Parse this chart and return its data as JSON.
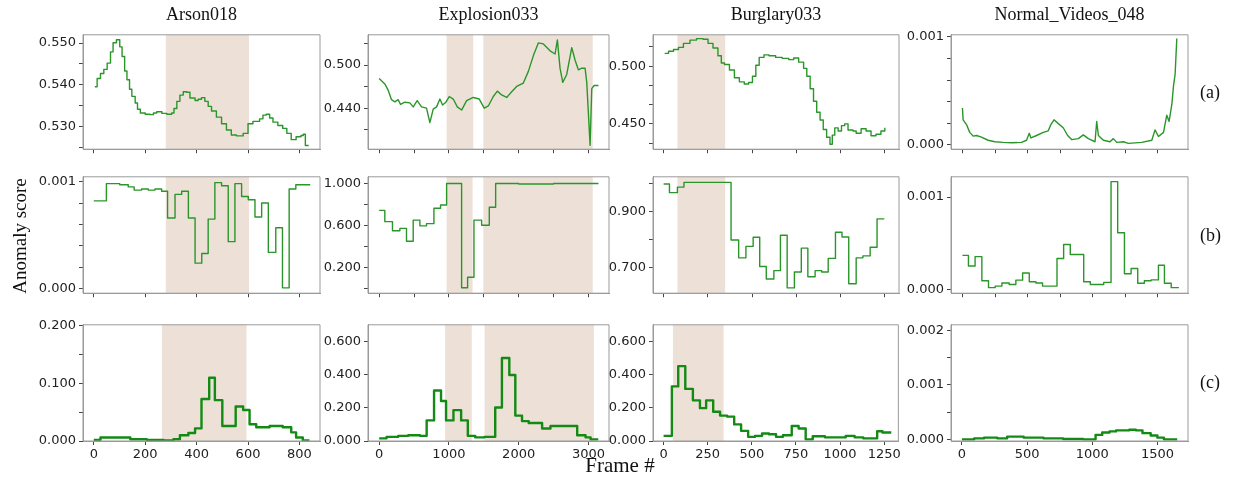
{
  "chart_data": [
    {
      "type": "step",
      "title": "Arson018",
      "x": [
        4,
        13,
        26,
        39,
        52,
        65,
        75,
        88,
        101,
        110,
        120,
        129,
        139,
        148,
        161,
        170,
        181,
        200,
        219,
        232,
        245,
        265,
        284,
        303,
        312,
        323,
        335,
        348,
        361,
        374,
        394,
        406,
        419,
        432,
        445,
        458,
        477,
        497,
        516,
        535,
        555,
        581,
        600,
        619,
        645,
        658,
        671,
        684,
        697,
        716,
        735,
        751,
        768,
        787,
        806,
        815,
        823,
        836
      ],
      "series": [
        {
          "color": "#2a962a",
          "values": [
            0.5395,
            0.5415,
            0.5427,
            0.5437,
            0.5452,
            0.5479,
            0.5501,
            0.5508,
            0.5491,
            0.5468,
            0.5433,
            0.5412,
            0.5389,
            0.5372,
            0.5356,
            0.5341,
            0.5332,
            0.5329,
            0.5328,
            0.5332,
            0.5335,
            0.5331,
            0.5329,
            0.5332,
            0.5343,
            0.536,
            0.5375,
            0.5383,
            0.5382,
            0.5368,
            0.5362,
            0.5365,
            0.5369,
            0.536,
            0.5348,
            0.5337,
            0.5322,
            0.5306,
            0.5291,
            0.5279,
            0.5277,
            0.5283,
            0.5306,
            0.5312,
            0.5318,
            0.5327,
            0.5329,
            0.532,
            0.531,
            0.5302,
            0.5295,
            0.5283,
            0.5268,
            0.5275,
            0.5278,
            0.5281,
            0.5254,
            0.5254
          ]
        }
      ],
      "xlim": [
        -42,
        880
      ],
      "xticks": [
        0,
        200,
        400,
        600,
        800
      ],
      "ylim": [
        0.5245,
        0.552
      ],
      "yticks": [
        {
          "value": 0.525,
          "label": null
        },
        {
          "value": 0.53,
          "label": "0.530"
        },
        {
          "value": 0.535,
          "label": null
        },
        {
          "value": 0.54,
          "label": "0.540"
        },
        {
          "value": 0.545,
          "label": null
        },
        {
          "value": 0.55,
          "label": "0.550"
        }
      ],
      "bands": [
        {
          "axis": "x",
          "from": 280,
          "to": 604,
          "color": "#ede1d7"
        }
      ],
      "tick_labels": "y"
    },
    {
      "type": "line",
      "title": "Explosion033",
      "x": [
        0,
        81,
        129,
        177,
        225,
        273,
        306,
        368,
        440,
        488,
        545,
        608,
        679,
        727,
        775,
        823,
        871,
        909,
        957,
        1005,
        1062,
        1120,
        1182,
        1254,
        1349,
        1435,
        1507,
        1565,
        1636,
        1694,
        1756,
        1828,
        1900,
        1971,
        2067,
        2139,
        2211,
        2282,
        2354,
        2450,
        2522,
        2555,
        2593,
        2632,
        2689,
        2761,
        2809,
        2856,
        2904,
        2952,
        2976,
        3024,
        3048,
        3081,
        3144
      ],
      "series": [
        {
          "color": "#2a962a",
          "values": [
            0.4812,
            0.4737,
            0.465,
            0.4518,
            0.4488,
            0.4518,
            0.4453,
            0.4483,
            0.4474,
            0.4418,
            0.4505,
            0.4418,
            0.44,
            0.4199,
            0.4387,
            0.4418,
            0.4527,
            0.4444,
            0.4483,
            0.4562,
            0.4527,
            0.4418,
            0.4374,
            0.4505,
            0.4549,
            0.4527,
            0.44,
            0.4431,
            0.4562,
            0.4637,
            0.4584,
            0.4549,
            0.4628,
            0.4702,
            0.475,
            0.4912,
            0.5131,
            0.5307,
            0.5293,
            0.5197,
            0.5153,
            0.535,
            0.4956,
            0.4759,
            0.4869,
            0.5241,
            0.5066,
            0.4934,
            0.4956,
            0.4956,
            0.4759,
            0.3883,
            0.4672,
            0.4715,
            0.4715
          ]
        }
      ],
      "xlim": [
        -160,
        3295
      ],
      "xticks": [
        0,
        500,
        1000,
        1500,
        2000,
        2500,
        3000
      ],
      "ylim": [
        0.383,
        0.542
      ],
      "yticks": [
        {
          "value": 0.41,
          "label": null
        },
        {
          "value": 0.44,
          "label": "0.440"
        },
        {
          "value": 0.47,
          "label": null
        },
        {
          "value": 0.5,
          "label": "0.500"
        },
        {
          "value": 0.53,
          "label": null
        }
      ],
      "bands": [
        {
          "axis": "x",
          "from": 967,
          "to": 1349,
          "color": "#ede1d7"
        },
        {
          "axis": "x",
          "from": 1493,
          "to": 3062,
          "color": "#ede1d7"
        }
      ],
      "tick_labels": "y"
    },
    {
      "type": "step",
      "title": "Burglary033",
      "x": [
        6,
        28,
        56,
        84,
        112,
        149,
        186,
        223,
        251,
        279,
        307,
        326,
        344,
        372,
        400,
        428,
        456,
        480,
        502,
        521,
        540,
        567,
        595,
        633,
        670,
        707,
        735,
        763,
        791,
        809,
        828,
        847,
        865,
        884,
        902,
        921,
        940,
        953,
        967,
        986,
        1005,
        1023,
        1042,
        1070,
        1088,
        1116,
        1144,
        1172,
        1200,
        1228,
        1250
      ],
      "series": [
        {
          "color": "#2a962a",
          "values": [
            0.5111,
            0.513,
            0.5144,
            0.5163,
            0.5198,
            0.5226,
            0.5239,
            0.5234,
            0.5198,
            0.5158,
            0.509,
            0.5027,
            0.5014,
            0.4967,
            0.4899,
            0.4864,
            0.4845,
            0.4859,
            0.4913,
            0.5008,
            0.5076,
            0.5098,
            0.509,
            0.5076,
            0.5068,
            0.5057,
            0.5071,
            0.5035,
            0.4981,
            0.4913,
            0.4804,
            0.4696,
            0.4601,
            0.4533,
            0.4451,
            0.4383,
            0.4323,
            0.4402,
            0.4465,
            0.4438,
            0.4484,
            0.45,
            0.4446,
            0.4438,
            0.4418,
            0.4457,
            0.4438,
            0.4397,
            0.441,
            0.4438,
            0.4465
          ]
        }
      ],
      "xlim": [
        -60,
        1330
      ],
      "xticks": [
        0,
        250,
        500,
        750,
        1000,
        1250
      ],
      "ylim": [
        0.428,
        0.5272
      ],
      "yticks": [
        {
          "value": 0.4333,
          "label": null
        },
        {
          "value": 0.45,
          "label": "0.450"
        },
        {
          "value": 0.4667,
          "label": null
        },
        {
          "value": 0.4833,
          "label": null
        },
        {
          "value": 0.5,
          "label": "0.500"
        },
        {
          "value": 0.5167,
          "label": null
        }
      ],
      "bands": [
        {
          "axis": "x",
          "from": 78,
          "to": 348,
          "color": "#ede1d7"
        }
      ],
      "tick_labels": "y"
    },
    {
      "type": "line",
      "title": "Normal_Videos_048",
      "x": [
        0,
        5,
        31,
        56,
        82,
        108,
        146,
        197,
        249,
        313,
        377,
        454,
        492,
        513,
        526,
        569,
        621,
        659,
        679,
        703,
        736,
        774,
        808,
        838,
        890,
        928,
        967,
        1018,
        1031,
        1044,
        1082,
        1133,
        1159,
        1185,
        1236,
        1274,
        1377,
        1454,
        1479,
        1505,
        1544,
        1569,
        1587,
        1608,
        1621,
        1633,
        1646
      ],
      "series": [
        {
          "color": "#2a962a",
          "values": [
            0.000342,
            0.000232,
            0.000188,
            0.000116,
            8.1e-05,
            8.7e-05,
            7.2e-05,
            4.3e-05,
            2.9e-05,
            2.3e-05,
            2e-05,
            2.3e-05,
            4.3e-05,
            0.000107,
            6.4e-05,
            8.7e-05,
            0.000116,
            0.00013,
            0.000188,
            0.000232,
            0.000197,
            0.000159,
            8.7e-05,
            4.9e-05,
            5.8e-05,
            9.3e-05,
            5.8e-05,
            2.9e-05,
            0.000217,
            8.7e-05,
            4.3e-05,
            2.9e-05,
            5.8e-05,
            2.3e-05,
            2.9e-05,
            1.4e-05,
            2.3e-05,
            4.3e-05,
            0.000139,
            7.8e-05,
            0.000116,
            0.000275,
            0.000217,
            0.000377,
            0.000551,
            0.000652,
            0.000986
          ]
        }
      ],
      "xlim": [
        -88,
        1732
      ],
      "xticks": [
        0,
        250,
        500,
        750,
        1000,
        1250,
        1500
      ],
      "ylim": [
        -4e-05,
        0.00102
      ],
      "yticks": [
        {
          "value": 0,
          "label": "0.000"
        },
        {
          "value": 0.0002,
          "label": null
        },
        {
          "value": 0.0004,
          "label": null
        },
        {
          "value": 0.0006,
          "label": null
        },
        {
          "value": 0.0008,
          "label": null
        },
        {
          "value": 0.001,
          "label": "0.001"
        }
      ],
      "annotations": [
        "(a)"
      ],
      "tick_labels": "y"
    },
    {
      "type": "step",
      "ylabel": "Anomaly score",
      "x": [
        0,
        49,
        101,
        134,
        157,
        186,
        212,
        238,
        264,
        287,
        316,
        342,
        368,
        394,
        420,
        445,
        471,
        497,
        523,
        549,
        575,
        601,
        627,
        653,
        679,
        708,
        734,
        760,
        786,
        842
      ],
      "series": [
        {
          "color": "#2a962a",
          "values": [
            0.00082,
            0.00098,
            0.00097,
            0.00095,
            0.00092,
            0.00093,
            0.00092,
            0.00093,
            0.00091,
            0.00066,
            0.00088,
            0.00091,
            0.00066,
            0.00024,
            0.00033,
            0.00065,
            0.00099,
            0.00096,
            0.00044,
            0.00098,
            0.00086,
            0.00083,
            0.00067,
            0.0008,
            0.00034,
            0.00057,
            1e-05,
            0.00093,
            0.00097,
            0.00097
          ]
        }
      ],
      "xlim": [
        -42,
        880
      ],
      "xticks": [
        0,
        200,
        400,
        600,
        800
      ],
      "ylim": [
        -4e-05,
        0.001044
      ],
      "yticks": [
        {
          "value": 0,
          "label": "0.000"
        },
        {
          "value": 0.0002,
          "label": null
        },
        {
          "value": 0.0004,
          "label": null
        },
        {
          "value": 0.0006,
          "label": null
        },
        {
          "value": 0.0008,
          "label": null
        },
        {
          "value": 0.001,
          "label": "0.001"
        }
      ],
      "bands": [
        {
          "axis": "x",
          "from": 280,
          "to": 604,
          "color": "#ede1d7"
        }
      ],
      "tick_labels": "y"
    },
    {
      "type": "step",
      "x": [
        0,
        81,
        191,
        297,
        392,
        488,
        584,
        679,
        785,
        880,
        967,
        1182,
        1268,
        1359,
        1469,
        1579,
        1670,
        2000,
        2500,
        3144
      ],
      "series": [
        {
          "color": "#2a962a",
          "values": [
            0.744,
            0.637,
            0.551,
            0.573,
            0.45,
            0.652,
            0.597,
            0.618,
            0.765,
            0.795,
            1.0,
            0.008,
            0.108,
            0.652,
            0.603,
            0.774,
            1.0,
            0.995,
            1.0,
            1.0
          ]
        }
      ],
      "xlim": [
        -160,
        3295
      ],
      "xticks": [
        0,
        500,
        1000,
        1500,
        2000,
        2500,
        3000
      ],
      "ylim": [
        -0.044,
        1.064
      ],
      "yticks": [
        {
          "value": 0,
          "label": null
        },
        {
          "value": 0.2,
          "label": "0.200"
        },
        {
          "value": 0.4,
          "label": null
        },
        {
          "value": 0.6,
          "label": "0.600"
        },
        {
          "value": 0.8,
          "label": null
        },
        {
          "value": 1,
          "label": "1.000"
        }
      ],
      "bands": [
        {
          "axis": "x",
          "from": 967,
          "to": 1340,
          "color": "#ede1d7"
        },
        {
          "axis": "x",
          "from": 1493,
          "to": 3062,
          "color": "#ede1d7"
        }
      ],
      "tick_labels": "y"
    },
    {
      "type": "step",
      "x": [
        0,
        33,
        78,
        115,
        381,
        424,
        465,
        506,
        543,
        580,
        623,
        660,
        698,
        739,
        778,
        815,
        856,
        893,
        930,
        971,
        1008,
        1046,
        1088,
        1126,
        1167,
        1206,
        1247
      ],
      "series": [
        {
          "color": "#2a962a",
          "values": [
            0.999,
            0.968,
            0.988,
            1.005,
            0.798,
            0.734,
            0.775,
            0.808,
            0.703,
            0.658,
            0.688,
            0.815,
            0.626,
            0.683,
            0.769,
            0.666,
            0.688,
            0.683,
            0.732,
            0.826,
            0.809,
            0.641,
            0.734,
            0.741,
            0.772,
            0.874,
            0.874
          ]
        }
      ],
      "xlim": [
        -60,
        1330
      ],
      "xticks": [
        0,
        250,
        500,
        750,
        1000,
        1250
      ],
      "ylim": [
        0.607,
        1.025
      ],
      "yticks": [
        {
          "value": 0.7,
          "label": "0.700"
        },
        {
          "value": 0.8,
          "label": null
        },
        {
          "value": 0.9,
          "label": "0.900"
        },
        {
          "value": 1,
          "label": null
        }
      ],
      "bands": [
        {
          "axis": "x",
          "from": 78,
          "to": 348,
          "color": "#ede1d7"
        }
      ],
      "tick_labels": "y"
    },
    {
      "type": "step",
      "x": [
        0,
        46,
        97,
        149,
        200,
        251,
        303,
        359,
        410,
        462,
        513,
        564,
        615,
        726,
        777,
        828,
        931,
        982,
        1085,
        1141,
        1192,
        1244,
        1295,
        1346,
        1397,
        1449,
        1505,
        1551,
        1603,
        1662
      ],
      "series": [
        {
          "color": "#2a962a",
          "values": [
            0.000369,
            0.000255,
            0.000356,
            9.4e-05,
            2e-05,
            3.7e-05,
            7e-05,
            5.4e-05,
            0.000101,
            0.000178,
            8.4e-05,
            7e-05,
            3.7e-05,
            0.000336,
            0.000487,
            0.000379,
            8.4e-05,
            5.4e-05,
            7.7e-05,
            0.001168,
            0.000614,
            0.000171,
            0.000228,
            6.7e-05,
            9.4e-05,
            0.000104,
            0.000262,
            6.7e-05,
            2e-05,
            2e-05
          ]
        }
      ],
      "xlim": [
        -88,
        1732
      ],
      "xticks": [
        0,
        250,
        500,
        750,
        1000,
        1250,
        1500
      ],
      "ylim": [
        -4e-05,
        0.00122
      ],
      "yticks": [
        {
          "value": 0,
          "label": "0.000"
        },
        {
          "value": 0.001,
          "label": "0.001"
        }
      ],
      "annotations": [
        "(b)"
      ],
      "tick_labels": "y"
    },
    {
      "type": "step",
      "x": [
        0,
        26,
        90,
        142,
        206,
        271,
        310,
        335,
        368,
        394,
        419,
        449,
        471,
        500,
        552,
        581,
        606,
        632,
        684,
        735,
        768,
        787,
        813,
        839
      ],
      "series": [
        {
          "color": "#138a13",
          "values": [
            0.002,
            0.006,
            0.006,
            0.003,
            0.002,
            0.001,
            0.003,
            0.01,
            0.014,
            0.022,
            0.073,
            0.11,
            0.071,
            0.026,
            0.06,
            0.054,
            0.029,
            0.024,
            0.026,
            0.024,
            0.015,
            0.006,
            0.001,
            0.001
          ]
        }
      ],
      "xlim": [
        -42,
        880
      ],
      "xticks": [
        0,
        200,
        400,
        600,
        800
      ],
      "ylim": [
        0,
        0.202
      ],
      "yticks": [
        {
          "value": 0,
          "label": "0.000"
        },
        {
          "value": 0.05,
          "label": null
        },
        {
          "value": 0.1,
          "label": "0.100"
        },
        {
          "value": 0.15,
          "label": null
        },
        {
          "value": 0.2,
          "label": "0.200"
        }
      ],
      "bands": [
        {
          "axis": "x",
          "from": 265,
          "to": 594,
          "color": "#ede1d7"
        }
      ]
    },
    {
      "type": "step",
      "xlabel": "Frame #",
      "x": [
        0,
        106,
        273,
        417,
        585,
        681,
        787,
        887,
        959,
        1065,
        1175,
        1271,
        1377,
        1511,
        1664,
        1760,
        1866,
        1952,
        2048,
        2144,
        2336,
        2456,
        2839,
        2959,
        3031,
        3141
      ],
      "series": [
        {
          "color": "#138a13",
          "values": [
            0.016,
            0.025,
            0.031,
            0.035,
            0.031,
            0.124,
            0.304,
            0.241,
            0.124,
            0.186,
            0.124,
            0.031,
            0.022,
            0.025,
            0.202,
            0.5,
            0.398,
            0.153,
            0.12,
            0.108,
            0.075,
            0.09,
            0.035,
            0.022,
            0.01,
            0.01
          ]
        }
      ],
      "xlim": [
        -160,
        3295
      ],
      "xticks": [
        0,
        1000,
        2000,
        3000
      ],
      "ylim": [
        0,
        0.7
      ],
      "yticks": [
        {
          "value": 0,
          "label": "0.000"
        },
        {
          "value": 0.2,
          "label": "0.200"
        },
        {
          "value": 0.4,
          "label": "0.400"
        },
        {
          "value": 0.6,
          "label": "0.600"
        }
      ],
      "bands": [
        {
          "axis": "x",
          "from": 945,
          "to": 1328,
          "color": "#ede1d7"
        },
        {
          "axis": "x",
          "from": 1511,
          "to": 3079,
          "color": "#ede1d7"
        }
      ]
    },
    {
      "type": "step",
      "x": [
        0,
        47,
        83,
        123,
        166,
        206,
        241,
        281,
        320,
        360,
        400,
        439,
        479,
        518,
        558,
        597,
        637,
        676,
        726,
        765,
        805,
        845,
        914,
        1032,
        1082,
        1131,
        1210,
        1240,
        1290
      ],
      "series": [
        {
          "color": "#138a13",
          "values": [
            0.031,
            0.329,
            0.451,
            0.314,
            0.245,
            0.198,
            0.245,
            0.176,
            0.153,
            0.147,
            0.1,
            0.061,
            0.025,
            0.031,
            0.045,
            0.041,
            0.025,
            0.035,
            0.09,
            0.075,
            0.01,
            0.029,
            0.022,
            0.031,
            0.022,
            0.016,
            0.059,
            0.051,
            0.051
          ]
        }
      ],
      "xlim": [
        -60,
        1330
      ],
      "xticks": [
        0,
        250,
        500,
        750,
        1000,
        1250
      ],
      "ylim": [
        0,
        0.7
      ],
      "yticks": [
        {
          "value": 0,
          "label": "0.000"
        },
        {
          "value": 0.2,
          "label": "0.200"
        },
        {
          "value": 0.4,
          "label": "0.400"
        },
        {
          "value": 0.6,
          "label": "0.600"
        }
      ],
      "bands": [
        {
          "axis": "x",
          "from": 53,
          "to": 340,
          "color": "#ede1d7"
        }
      ]
    },
    {
      "type": "step",
      "x": [
        0,
        94,
        170,
        271,
        347,
        473,
        625,
        777,
        929,
        1025,
        1076,
        1132,
        1182,
        1284,
        1334,
        1385,
        1448,
        1499,
        1549,
        1651
      ],
      "series": [
        {
          "color": "#138a13",
          "values": [
            0,
            1.9e-05,
            3.2e-05,
            1.9e-05,
            5.1e-05,
            3.2e-05,
            1.9e-05,
            6e-06,
            0,
            8.2e-05,
            0.000127,
            0.000146,
            0.000165,
            0.000177,
            0.000165,
            0.000114,
            7e-05,
            3.2e-05,
            0,
            0
          ]
        }
      ],
      "xlim": [
        -84,
        1734
      ],
      "xticks": [
        0,
        500,
        1000,
        1500
      ],
      "ylim": [
        -3e-05,
        0.0021
      ],
      "yticks": [
        {
          "value": 0,
          "label": "0.000"
        },
        {
          "value": 0.0005,
          "label": null
        },
        {
          "value": 0.001,
          "label": "0.001"
        },
        {
          "value": 0.0015,
          "label": null
        },
        {
          "value": 0.002,
          "label": "0.002"
        }
      ],
      "annotations": [
        "(c)"
      ]
    }
  ]
}
